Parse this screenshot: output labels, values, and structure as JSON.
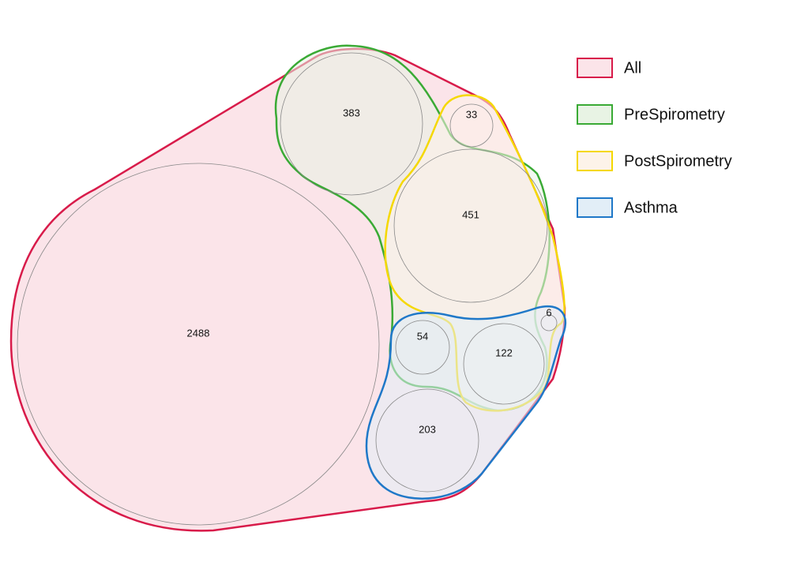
{
  "sets": [
    {
      "label": "All",
      "color": "#d81b4a",
      "fill": "#fbe4e9"
    },
    {
      "label": "PreSpirometry",
      "color": "#3aaa35",
      "fill": "#e8f3e4"
    },
    {
      "label": "PostSpirometry",
      "color": "#f5d800",
      "fill": "#fdf3e9"
    },
    {
      "label": "Asthma",
      "color": "#1f78c8",
      "fill": "#e2eef7"
    }
  ],
  "regions": [
    {
      "label": "2488"
    },
    {
      "label": "383"
    },
    {
      "label": "33"
    },
    {
      "label": "451"
    },
    {
      "label": "6"
    },
    {
      "label": "54"
    },
    {
      "label": "122"
    },
    {
      "label": "203"
    }
  ]
}
